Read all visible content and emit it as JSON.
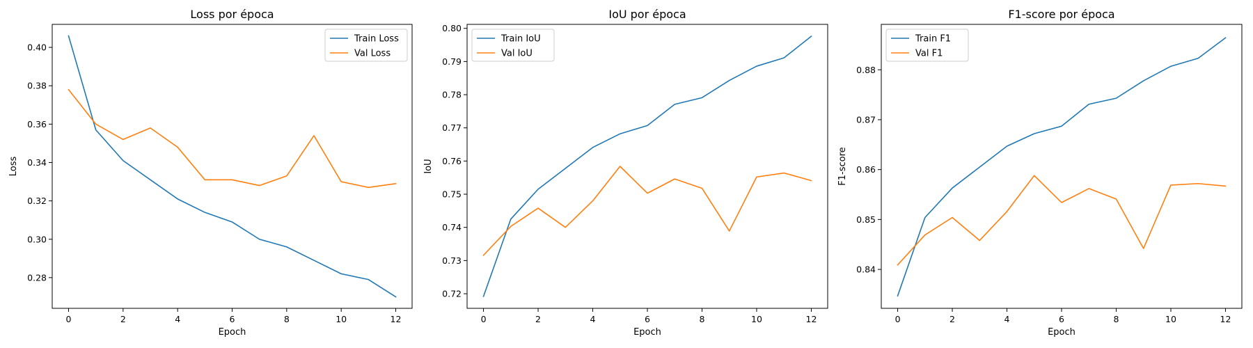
{
  "chart_data": [
    {
      "type": "line",
      "title": "Loss por época",
      "xlabel": "Epoch",
      "ylabel": "Loss",
      "x": [
        0,
        1,
        2,
        3,
        4,
        5,
        6,
        7,
        8,
        9,
        10,
        11,
        12
      ],
      "xlim": [
        -0.6,
        12.6
      ],
      "ylim": [
        0.264,
        0.412
      ],
      "xticks": [
        0,
        2,
        4,
        6,
        8,
        10,
        12
      ],
      "yticks": [
        0.28,
        0.3,
        0.32,
        0.34,
        0.36,
        0.38,
        0.4
      ],
      "ytick_labels": [
        "0.28",
        "0.30",
        "0.32",
        "0.34",
        "0.36",
        "0.38",
        "0.40"
      ],
      "legend": "upper right",
      "series": [
        {
          "name": "Train Loss",
          "color": "#1f77b4",
          "values": [
            0.406,
            0.357,
            0.341,
            0.331,
            0.321,
            0.314,
            0.309,
            0.3,
            0.296,
            0.289,
            0.282,
            0.279,
            0.27
          ]
        },
        {
          "name": "Val Loss",
          "color": "#ff7f0e",
          "values": [
            0.378,
            0.36,
            0.352,
            0.358,
            0.348,
            0.331,
            0.331,
            0.328,
            0.333,
            0.354,
            0.33,
            0.327,
            0.329
          ]
        }
      ]
    },
    {
      "type": "line",
      "title": "IoU por época",
      "xlabel": "Epoch",
      "ylabel": "IoU",
      "x": [
        0,
        1,
        2,
        3,
        4,
        5,
        6,
        7,
        8,
        9,
        10,
        11,
        12
      ],
      "xlim": [
        -0.6,
        12.6
      ],
      "ylim": [
        0.7156,
        0.8012
      ],
      "xticks": [
        0,
        2,
        4,
        6,
        8,
        10,
        12
      ],
      "yticks": [
        0.72,
        0.73,
        0.74,
        0.75,
        0.76,
        0.77,
        0.78,
        0.79,
        0.8
      ],
      "ytick_labels": [
        "0.72",
        "0.73",
        "0.74",
        "0.75",
        "0.76",
        "0.77",
        "0.78",
        "0.79",
        "0.80"
      ],
      "legend": "upper left",
      "series": [
        {
          "name": "Train IoU",
          "color": "#1f77b4",
          "values": [
            0.7192,
            0.7425,
            0.7515,
            0.7578,
            0.7641,
            0.7682,
            0.7707,
            0.7771,
            0.7791,
            0.7843,
            0.7886,
            0.7911,
            0.7976
          ]
        },
        {
          "name": "Val IoU",
          "color": "#ff7f0e",
          "values": [
            0.7316,
            0.7403,
            0.7458,
            0.74,
            0.748,
            0.7584,
            0.7503,
            0.7546,
            0.7518,
            0.7389,
            0.7552,
            0.7564,
            0.7541
          ]
        }
      ]
    },
    {
      "type": "line",
      "title": "F1-score por época",
      "xlabel": "Epoch",
      "ylabel": "F1-score",
      "x": [
        0,
        1,
        2,
        3,
        4,
        5,
        6,
        7,
        8,
        9,
        10,
        11,
        12
      ],
      "xlim": [
        -0.6,
        12.6
      ],
      "ylim": [
        0.8322,
        0.8891
      ],
      "xticks": [
        0,
        2,
        4,
        6,
        8,
        10,
        12
      ],
      "yticks": [
        0.84,
        0.85,
        0.86,
        0.87,
        0.88
      ],
      "ytick_labels": [
        "0.84",
        "0.85",
        "0.86",
        "0.87",
        "0.88"
      ],
      "legend": "upper left",
      "series": [
        {
          "name": "Train F1",
          "color": "#1f77b4",
          "values": [
            0.8347,
            0.8504,
            0.8563,
            0.8605,
            0.8647,
            0.8672,
            0.8687,
            0.8731,
            0.8743,
            0.8778,
            0.8807,
            0.8823,
            0.8864
          ]
        },
        {
          "name": "Val F1",
          "color": "#ff7f0e",
          "values": [
            0.8409,
            0.8469,
            0.8504,
            0.8458,
            0.8516,
            0.8588,
            0.8534,
            0.8562,
            0.8541,
            0.8442,
            0.8569,
            0.8572,
            0.8567
          ]
        }
      ]
    }
  ]
}
